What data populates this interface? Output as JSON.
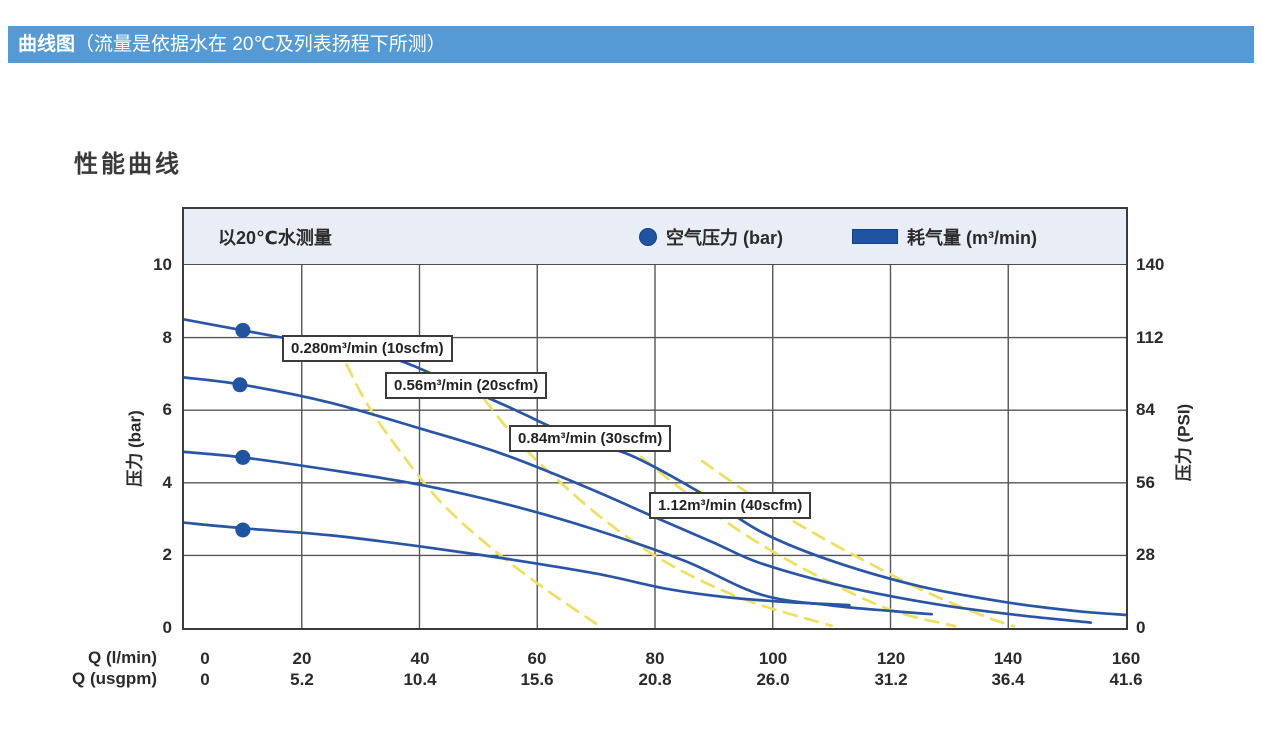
{
  "header": {
    "title_bold": "曲线图",
    "title_rest": "（流量是依据水在 20℃及列表扬程下所测）"
  },
  "section_title": "性能曲线",
  "chart_data": {
    "type": "line",
    "title": "性能曲线",
    "measured_note": "以20℃水测量",
    "legend": [
      {
        "label": "空气压力 (bar)",
        "marker": "circle",
        "color": "#2153a3"
      },
      {
        "label": "耗气量 (m³/min)",
        "marker": "rect",
        "color": "#2153a3"
      }
    ],
    "colors": {
      "pressure_curve": "#2a55a5",
      "consumption_curve": "#ede060",
      "grid": "#565656",
      "band_bg": "#e9eef6",
      "header_bg": "#559ad4"
    },
    "axes": {
      "x_label_lmin": "Q (l/min)",
      "x_label_usgpm": "Q (usgpm)",
      "y_left_label": "压力 (bar)",
      "y_right_label": "压力 (PSI)",
      "x_range": [
        0,
        160
      ],
      "y_range": [
        0,
        10
      ],
      "x_ticks_lmin": [
        "0",
        "20",
        "40",
        "60",
        "80",
        "100",
        "120",
        "140",
        "160"
      ],
      "x_ticks_usgpm": [
        "0",
        "5.2",
        "10.4",
        "15.6",
        "20.8",
        "26.0",
        "31.2",
        "36.4",
        "41.6"
      ],
      "y_ticks_bar": [
        "0",
        "2",
        "4",
        "6",
        "8",
        "10"
      ],
      "y_ticks_psi": [
        "0",
        "28",
        "56",
        "84",
        "112",
        "140"
      ],
      "grid": true
    },
    "pressure_dots": [
      {
        "q": 10,
        "p": 8.2
      },
      {
        "q": 9.5,
        "p": 6.7
      },
      {
        "q": 10,
        "p": 4.7
      },
      {
        "q": 10,
        "p": 2.7
      }
    ],
    "series": [
      {
        "name": "air-consumption-0.280",
        "style": "dashed",
        "color": "#ede060",
        "points": [
          [
            26,
            7.8
          ],
          [
            31,
            6.2
          ],
          [
            37,
            4.8
          ],
          [
            44,
            3.4
          ],
          [
            53,
            2.1
          ],
          [
            62,
            1.0
          ],
          [
            70,
            0.12
          ]
        ]
      },
      {
        "name": "air-consumption-0.56",
        "style": "dashed",
        "color": "#ede060",
        "points": [
          [
            51,
            6.3
          ],
          [
            57,
            5.1
          ],
          [
            64,
            4.0
          ],
          [
            72,
            2.9
          ],
          [
            82,
            1.8
          ],
          [
            95,
            0.8
          ],
          [
            110,
            0.06
          ]
        ]
      },
      {
        "name": "air-consumption-0.84",
        "style": "dashed",
        "color": "#ede060",
        "points": [
          [
            72,
            5.5
          ],
          [
            80,
            4.4
          ],
          [
            88,
            3.4
          ],
          [
            97,
            2.4
          ],
          [
            108,
            1.4
          ],
          [
            120,
            0.5
          ],
          [
            131,
            0.05
          ]
        ]
      },
      {
        "name": "air-consumption-1.12",
        "style": "dashed",
        "color": "#ede060",
        "points": [
          [
            88,
            4.6
          ],
          [
            96,
            3.7
          ],
          [
            105,
            2.8
          ],
          [
            115,
            1.9
          ],
          [
            126,
            1.0
          ],
          [
            136,
            0.32
          ],
          [
            141,
            0.05
          ]
        ]
      },
      {
        "name": "pressure-8.4bar",
        "style": "solid",
        "color": "#2a55a5",
        "points": [
          [
            0,
            8.5
          ],
          [
            10,
            8.2
          ],
          [
            20,
            7.9
          ],
          [
            34,
            7.5
          ],
          [
            45,
            6.8
          ],
          [
            55,
            6.1
          ],
          [
            67,
            5.2
          ],
          [
            76,
            4.75
          ],
          [
            88,
            3.7
          ],
          [
            98,
            2.65
          ],
          [
            110,
            1.85
          ],
          [
            125,
            1.15
          ],
          [
            140,
            0.7
          ],
          [
            152,
            0.46
          ],
          [
            160,
            0.36
          ]
        ]
      },
      {
        "name": "pressure-7bar",
        "style": "solid",
        "color": "#2a55a5",
        "points": [
          [
            0,
            6.9
          ],
          [
            10,
            6.7
          ],
          [
            25,
            6.2
          ],
          [
            40,
            5.5
          ],
          [
            54,
            4.8
          ],
          [
            68,
            3.9
          ],
          [
            80,
            3.05
          ],
          [
            90,
            2.35
          ],
          [
            98,
            1.78
          ],
          [
            112,
            1.15
          ],
          [
            128,
            0.65
          ],
          [
            142,
            0.35
          ],
          [
            154,
            0.15
          ]
        ]
      },
      {
        "name": "pressure-4.9bar",
        "style": "solid",
        "color": "#2a55a5",
        "points": [
          [
            0,
            4.85
          ],
          [
            10,
            4.7
          ],
          [
            25,
            4.35
          ],
          [
            40,
            3.95
          ],
          [
            55,
            3.4
          ],
          [
            70,
            2.7
          ],
          [
            85,
            1.85
          ],
          [
            98,
            0.92
          ],
          [
            110,
            0.62
          ],
          [
            120,
            0.47
          ],
          [
            127,
            0.38
          ]
        ]
      },
      {
        "name": "pressure-2.8bar",
        "style": "solid",
        "color": "#2a55a5",
        "points": [
          [
            0,
            2.9
          ],
          [
            10,
            2.75
          ],
          [
            25,
            2.55
          ],
          [
            40,
            2.25
          ],
          [
            55,
            1.9
          ],
          [
            70,
            1.5
          ],
          [
            82,
            1.08
          ],
          [
            92,
            0.85
          ],
          [
            102,
            0.72
          ],
          [
            113,
            0.63
          ]
        ]
      }
    ],
    "annotations": [
      {
        "text": "0.280m³/min (10scfm)",
        "q": 16.6,
        "p": 8.08
      },
      {
        "text": "0.56m³/min (20scfm)",
        "q": 34.2,
        "p": 7.05
      },
      {
        "text": "0.84m³/min (30scfm)",
        "q": 55.2,
        "p": 5.6
      },
      {
        "text": "1.12m³/min (40scfm)",
        "q": 79.0,
        "p": 3.74
      }
    ]
  }
}
